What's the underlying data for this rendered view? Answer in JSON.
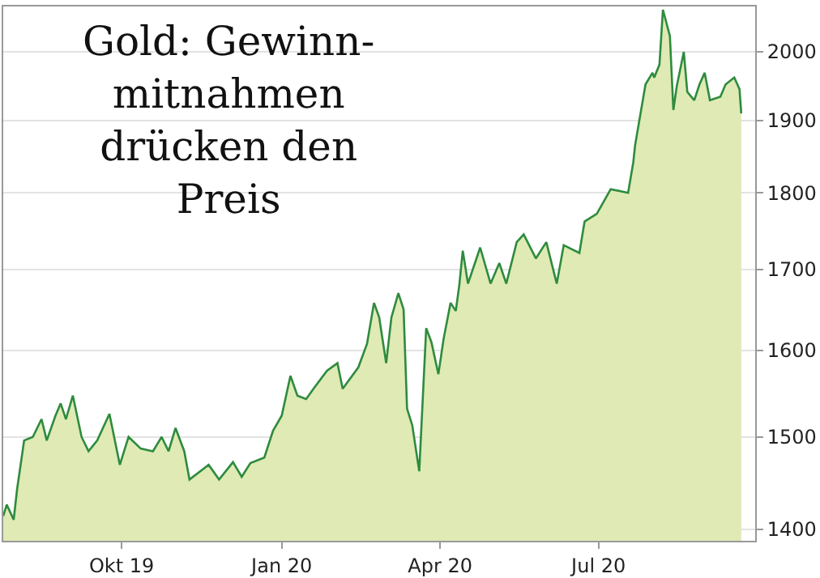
{
  "chart_data": {
    "type": "area",
    "title": "Gold: Gewinn-\nmitnahmen\ndrücken den\nPreis",
    "log": "y",
    "grid": "y",
    "legend": false,
    "xlim": [
      "2019-07-25",
      "2020-09-29"
    ],
    "xticks": [
      {
        "value": "2019-10-01",
        "label": "Okt 19"
      },
      {
        "value": "2020-01-01",
        "label": "Jan 20"
      },
      {
        "value": "2020-04-01",
        "label": "Apr 20"
      },
      {
        "value": "2020-07-01",
        "label": "Jul 20"
      }
    ],
    "ylim": [
      1388,
      2069
    ],
    "yticks": [
      1400,
      1500,
      1600,
      1700,
      1800,
      1900,
      2000
    ],
    "x": [
      "2019-07-25",
      "2019-07-27",
      "2019-07-31",
      "2019-08-02",
      "2019-08-06",
      "2019-08-11",
      "2019-08-16",
      "2019-08-19",
      "2019-08-24",
      "2019-08-27",
      "2019-08-30",
      "2019-09-03",
      "2019-09-08",
      "2019-09-12",
      "2019-09-17",
      "2019-09-24",
      "2019-09-30",
      "2019-10-05",
      "2019-10-12",
      "2019-10-19",
      "2019-10-24",
      "2019-10-28",
      "2019-11-01",
      "2019-11-06",
      "2019-11-09",
      "2019-11-20",
      "2019-11-26",
      "2019-12-04",
      "2019-12-09",
      "2019-12-14",
      "2019-12-22",
      "2019-12-27",
      "2020-01-01",
      "2020-01-06",
      "2020-01-10",
      "2020-01-15",
      "2020-01-20",
      "2020-01-27",
      "2020-02-02",
      "2020-02-05",
      "2020-02-14",
      "2020-02-19",
      "2020-02-23",
      "2020-02-26",
      "2020-03-01",
      "2020-03-04",
      "2020-03-08",
      "2020-03-11",
      "2020-03-13",
      "2020-03-16",
      "2020-03-20",
      "2020-03-24",
      "2020-03-27",
      "2020-03-31",
      "2020-04-03",
      "2020-04-07",
      "2020-04-10",
      "2020-04-12",
      "2020-04-14",
      "2020-04-17",
      "2020-04-24",
      "2020-04-30",
      "2020-05-05",
      "2020-05-09",
      "2020-05-15",
      "2020-05-19",
      "2020-05-26",
      "2020-06-01",
      "2020-06-07",
      "2020-06-11",
      "2020-06-20",
      "2020-06-23",
      "2020-06-30",
      "2020-07-08",
      "2020-07-18",
      "2020-07-21",
      "2020-07-22",
      "2020-07-28",
      "2020-08-01",
      "2020-08-02",
      "2020-08-05",
      "2020-08-07",
      "2020-08-11",
      "2020-08-13",
      "2020-08-15",
      "2020-08-19",
      "2020-08-21",
      "2020-08-25",
      "2020-08-28",
      "2020-08-31",
      "2020-09-03",
      "2020-09-09",
      "2020-09-12",
      "2020-09-17",
      "2020-09-20",
      "2020-09-21"
    ],
    "series": [
      {
        "color": "#2e8b3e",
        "values": [
          1414,
          1426,
          1410,
          1443,
          1496,
          1500,
          1520,
          1496,
          1524,
          1538,
          1520,
          1547,
          1500,
          1484,
          1496,
          1526,
          1469,
          1500,
          1487,
          1484,
          1500,
          1484,
          1510,
          1484,
          1453,
          1469,
          1453,
          1472,
          1456,
          1471,
          1477,
          1507,
          1524,
          1570,
          1547,
          1543,
          1557,
          1576,
          1585,
          1555,
          1580,
          1608,
          1658,
          1640,
          1585,
          1640,
          1670,
          1650,
          1532,
          1513,
          1462,
          1627,
          1610,
          1572,
          1614,
          1658,
          1648,
          1680,
          1724,
          1682,
          1728,
          1682,
          1708,
          1682,
          1735,
          1745,
          1714,
          1735,
          1682,
          1731,
          1721,
          1762,
          1772,
          1805,
          1800,
          1842,
          1865,
          1952,
          1969,
          1962,
          1981,
          2064,
          2024,
          1915,
          1950,
          2000,
          1941,
          1929,
          1952,
          1969,
          1929,
          1934,
          1952,
          1962,
          1945,
          1910
        ]
      }
    ]
  }
}
